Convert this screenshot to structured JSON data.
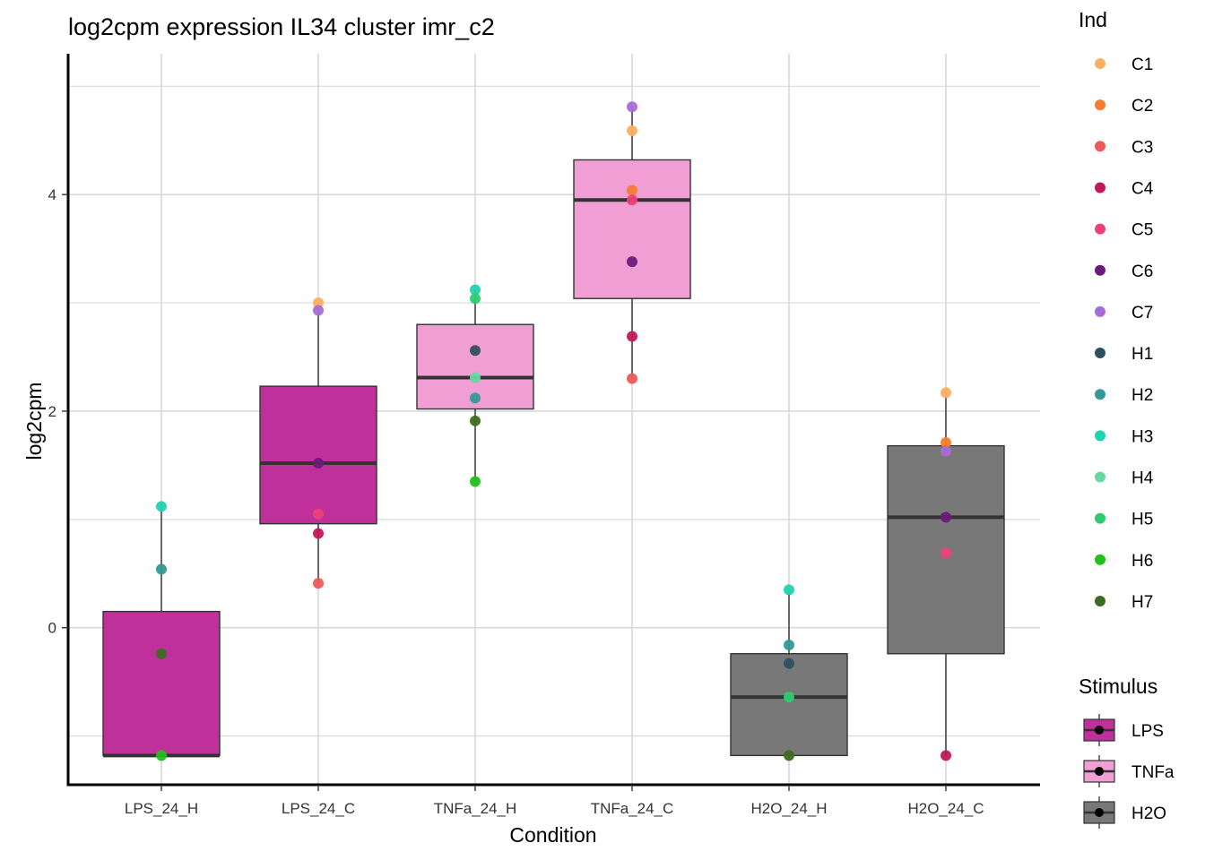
{
  "chart_data": {
    "type": "box",
    "title": "log2cpm expression IL34 cluster imr_c2",
    "xlabel": "Condition",
    "ylabel": "log2cpm",
    "ylim": [
      -1.45,
      5.3
    ],
    "yticks": [
      0,
      2,
      4
    ],
    "ytick_labels": [
      "0",
      "2",
      "4"
    ],
    "categories": [
      "LPS_24_H",
      "LPS_24_C",
      "TNFa_24_H",
      "TNFa_24_C",
      "H2O_24_H",
      "H2O_24_C"
    ],
    "boxes": [
      {
        "condition": "LPS_24_H",
        "stimulus": "LPS",
        "q1": -1.18,
        "median": -1.18,
        "q3": 0.15,
        "whisker_low": -1.18,
        "whisker_high": 1.12
      },
      {
        "condition": "LPS_24_C",
        "stimulus": "LPS",
        "q1": 0.96,
        "median": 1.52,
        "q3": 2.23,
        "whisker_low": 0.41,
        "whisker_high": 3.0
      },
      {
        "condition": "TNFa_24_H",
        "stimulus": "TNFa",
        "q1": 2.02,
        "median": 2.31,
        "q3": 2.8,
        "whisker_low": 1.35,
        "whisker_high": 3.12
      },
      {
        "condition": "TNFa_24_C",
        "stimulus": "TNFa",
        "q1": 3.04,
        "median": 3.95,
        "q3": 4.32,
        "whisker_low": 2.3,
        "whisker_high": 4.81
      },
      {
        "condition": "H2O_24_H",
        "stimulus": "H2O",
        "q1": -1.18,
        "median": -0.64,
        "q3": -0.24,
        "whisker_low": -1.18,
        "whisker_high": 0.35
      },
      {
        "condition": "H2O_24_C",
        "stimulus": "H2O",
        "q1": -0.24,
        "median": 1.02,
        "q3": 1.68,
        "whisker_low": -1.18,
        "whisker_high": 2.17
      }
    ],
    "points": [
      {
        "condition": "LPS_24_H",
        "ind": "H3",
        "value": 1.12
      },
      {
        "condition": "LPS_24_H",
        "ind": "H2",
        "value": 0.54
      },
      {
        "condition": "LPS_24_H",
        "ind": "H7",
        "value": -0.24
      },
      {
        "condition": "LPS_24_H",
        "ind": "H6",
        "value": -1.18
      },
      {
        "condition": "LPS_24_C",
        "ind": "C1",
        "value": 3.0
      },
      {
        "condition": "LPS_24_C",
        "ind": "C7",
        "value": 2.93
      },
      {
        "condition": "LPS_24_C",
        "ind": "C6",
        "value": 1.52
      },
      {
        "condition": "LPS_24_C",
        "ind": "C5",
        "value": 1.05
      },
      {
        "condition": "LPS_24_C",
        "ind": "C4",
        "value": 0.87
      },
      {
        "condition": "LPS_24_C",
        "ind": "C3",
        "value": 0.41
      },
      {
        "condition": "TNFa_24_H",
        "ind": "H3",
        "value": 3.12
      },
      {
        "condition": "TNFa_24_H",
        "ind": "H5",
        "value": 3.04
      },
      {
        "condition": "TNFa_24_H",
        "ind": "H1",
        "value": 2.56
      },
      {
        "condition": "TNFa_24_H",
        "ind": "H4",
        "value": 2.31
      },
      {
        "condition": "TNFa_24_H",
        "ind": "H2",
        "value": 2.12
      },
      {
        "condition": "TNFa_24_H",
        "ind": "H7",
        "value": 1.91
      },
      {
        "condition": "TNFa_24_H",
        "ind": "H6",
        "value": 1.35
      },
      {
        "condition": "TNFa_24_C",
        "ind": "C7",
        "value": 4.81
      },
      {
        "condition": "TNFa_24_C",
        "ind": "C1",
        "value": 4.59
      },
      {
        "condition": "TNFa_24_C",
        "ind": "C2",
        "value": 4.04
      },
      {
        "condition": "TNFa_24_C",
        "ind": "C5",
        "value": 3.95
      },
      {
        "condition": "TNFa_24_C",
        "ind": "C6",
        "value": 3.38
      },
      {
        "condition": "TNFa_24_C",
        "ind": "C4",
        "value": 2.69
      },
      {
        "condition": "TNFa_24_C",
        "ind": "C3",
        "value": 2.3
      },
      {
        "condition": "H2O_24_H",
        "ind": "H3",
        "value": 0.35
      },
      {
        "condition": "H2O_24_H",
        "ind": "H2",
        "value": -0.16
      },
      {
        "condition": "H2O_24_H",
        "ind": "H1",
        "value": -0.33
      },
      {
        "condition": "H2O_24_H",
        "ind": "H5",
        "value": -0.64
      },
      {
        "condition": "H2O_24_H",
        "ind": "H7",
        "value": -1.18
      },
      {
        "condition": "H2O_24_C",
        "ind": "C1",
        "value": 2.17
      },
      {
        "condition": "H2O_24_C",
        "ind": "C2",
        "value": 1.71
      },
      {
        "condition": "H2O_24_C",
        "ind": "C7",
        "value": 1.63
      },
      {
        "condition": "H2O_24_C",
        "ind": "C6",
        "value": 1.02
      },
      {
        "condition": "H2O_24_C",
        "ind": "C5",
        "value": 0.69
      },
      {
        "condition": "H2O_24_C",
        "ind": "C4",
        "value": -1.18
      }
    ],
    "legend_ind": {
      "title": "Ind",
      "entries": [
        {
          "label": "C1",
          "color": "#FDAE61"
        },
        {
          "label": "C2",
          "color": "#F47D2E"
        },
        {
          "label": "C3",
          "color": "#EE5A5A"
        },
        {
          "label": "C4",
          "color": "#C2185B"
        },
        {
          "label": "C5",
          "color": "#EC407A"
        },
        {
          "label": "C6",
          "color": "#6A1B7A"
        },
        {
          "label": "C7",
          "color": "#A66DD4"
        },
        {
          "label": "H1",
          "color": "#2F4F5F"
        },
        {
          "label": "H2",
          "color": "#339999"
        },
        {
          "label": "H3",
          "color": "#1DD3B0"
        },
        {
          "label": "H4",
          "color": "#66D9A3"
        },
        {
          "label": "H5",
          "color": "#2ECC71"
        },
        {
          "label": "H6",
          "color": "#22C01C"
        },
        {
          "label": "H7",
          "color": "#3D6B21"
        }
      ]
    },
    "legend_stimulus": {
      "title": "Stimulus",
      "entries": [
        {
          "label": "LPS",
          "color": "#C0309A"
        },
        {
          "label": "TNFa",
          "color": "#F09ED4"
        },
        {
          "label": "H2O",
          "color": "#787878"
        }
      ]
    }
  }
}
